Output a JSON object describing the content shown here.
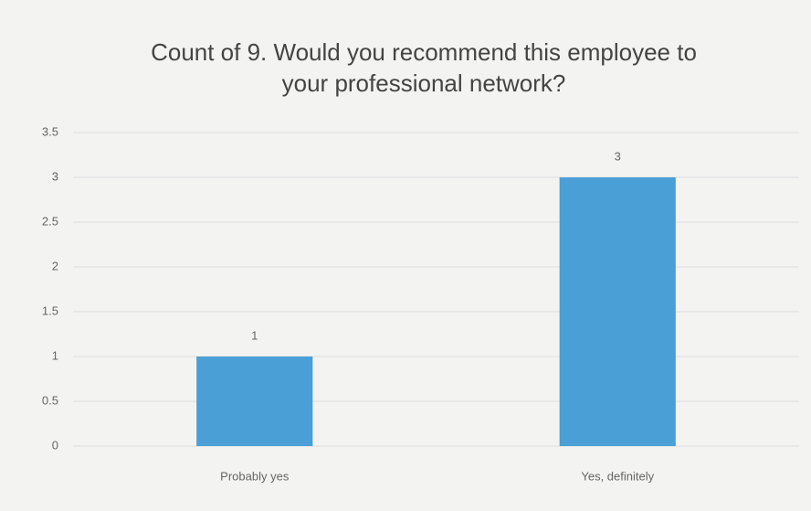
{
  "chart_data": {
    "type": "bar",
    "title": "Count of 9. Would you recommend this employee to your professional network?",
    "categories": [
      "Probably yes",
      "Yes, definitely"
    ],
    "values": [
      1,
      3
    ],
    "color": "#4a9fd6",
    "ylim": [
      0,
      3.5
    ],
    "yticks": [
      0,
      0.5,
      1,
      1.5,
      2,
      2.5,
      3,
      3.5
    ],
    "grid": true
  }
}
